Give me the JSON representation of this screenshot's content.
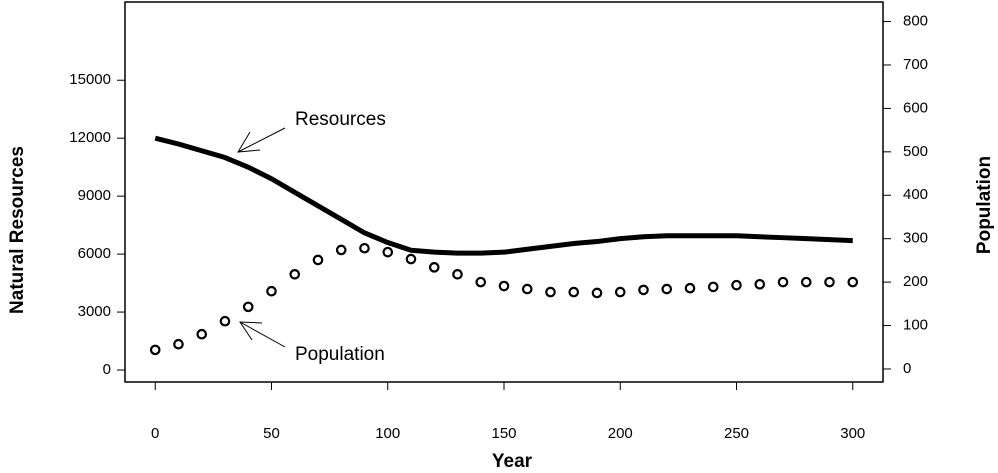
{
  "chart_data": {
    "type": "line",
    "xlabel": "Year",
    "ylabel": "Natural Resources",
    "y2label": "Population",
    "annotations": [
      "Resources",
      "Population"
    ],
    "x": [
      0,
      10,
      20,
      30,
      40,
      50,
      60,
      70,
      80,
      90,
      100,
      110,
      120,
      130,
      140,
      150,
      160,
      170,
      180,
      190,
      200,
      210,
      220,
      230,
      240,
      250,
      260,
      270,
      280,
      290,
      300
    ],
    "series": [
      {
        "name": "Resources",
        "color": "#000000",
        "marker": "none",
        "values": [
          12000,
          11700,
          11350,
          11000,
          10500,
          9900,
          9200,
          8500,
          7800,
          7100,
          6600,
          6200,
          6100,
          6050,
          6050,
          6100,
          6250,
          6400,
          6550,
          6650,
          6800,
          6900,
          6950,
          6950,
          6950,
          6950,
          6900,
          6850,
          6800,
          6750,
          6700
        ]
      },
      {
        "name": "Population",
        "color": "#000000",
        "marker": "open-circle",
        "axis": "y2",
        "values": [
          44,
          57,
          80,
          110,
          143,
          179,
          218,
          251,
          274,
          278,
          269,
          253,
          234,
          218,
          200,
          191,
          184,
          177,
          177,
          175,
          177,
          182,
          184,
          186,
          189,
          193,
          195,
          200,
          200,
          200,
          200
        ]
      }
    ],
    "xlim": [
      -13,
      313
    ],
    "xticks": [
      0,
      50,
      100,
      150,
      200,
      250,
      300
    ],
    "ylim": [
      -620,
      19050
    ],
    "yticks": [
      0,
      3000,
      6000,
      9000,
      12000,
      15000
    ],
    "y2lim": [
      -30,
      845
    ],
    "y2ticks": [
      0,
      100,
      200,
      300,
      400,
      500,
      600,
      700,
      800
    ],
    "grid": false
  }
}
